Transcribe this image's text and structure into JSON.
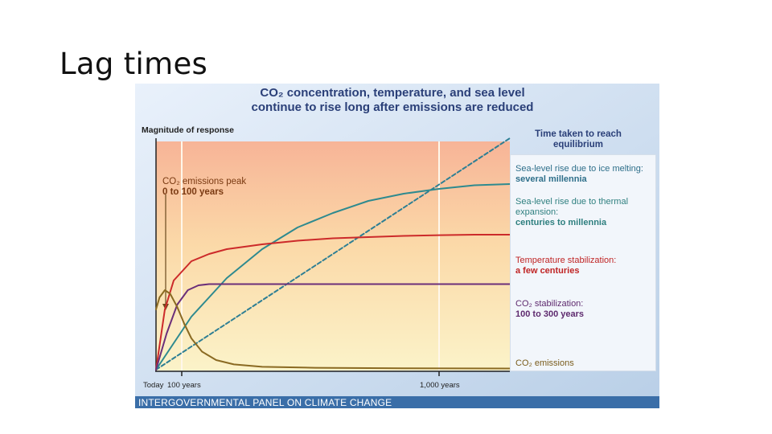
{
  "slide": {
    "title": "Lag times"
  },
  "chart_data": {
    "type": "line",
    "title_line1": "CO₂ concentration, temperature, and sea level",
    "title_line2": "continue to rise long after emissions are reduced",
    "ylabel": "Magnitude of response",
    "legend_title_line1": "Time taken to reach",
    "legend_title_line2": "equilibrium",
    "annotation_line1": "CO₂ emissions peak",
    "annotation_line2": "0 to 100 years",
    "x_ticks": [
      "Today",
      "100 years",
      "1,000 years"
    ],
    "source": "INTERGOVERNMENTAL PANEL ON CLIMATE CHANGE",
    "series": [
      {
        "name": "Sea-level rise due to ice melting:",
        "detail": "several millennia",
        "color": "#2e7f94",
        "dashed": true,
        "x": [
          0,
          1
        ],
        "y": [
          0,
          0.96
        ]
      },
      {
        "name": "Sea-level rise due to thermal expansion:",
        "detail": "centuries to millennia",
        "color": "#2e8a8f",
        "dashed": false,
        "x": [
          0,
          0.1,
          0.2,
          0.3,
          0.4,
          0.5,
          0.6,
          0.7,
          0.8,
          0.9,
          1
        ],
        "y": [
          0,
          0.22,
          0.38,
          0.5,
          0.59,
          0.65,
          0.7,
          0.73,
          0.75,
          0.765,
          0.77
        ]
      },
      {
        "name": "Temperature stabilization:",
        "detail": "a few centuries",
        "color": "#cc2a2a",
        "dashed": false,
        "x": [
          0,
          0.025,
          0.05,
          0.1,
          0.15,
          0.2,
          0.3,
          0.4,
          0.5,
          0.6,
          0.7,
          0.8,
          0.9,
          1
        ],
        "y": [
          0,
          0.25,
          0.37,
          0.45,
          0.48,
          0.5,
          0.52,
          0.535,
          0.545,
          0.55,
          0.555,
          0.558,
          0.56,
          0.56
        ]
      },
      {
        "name": "CO₂ stabilization:",
        "detail": "100 to 300 years",
        "color": "#6b2f7a",
        "dashed": false,
        "x": [
          0,
          0.03,
          0.06,
          0.09,
          0.12,
          0.15,
          0.2,
          0.3,
          0.5,
          0.75,
          1
        ],
        "y": [
          0,
          0.15,
          0.27,
          0.33,
          0.35,
          0.355,
          0.355,
          0.355,
          0.355,
          0.355,
          0.355
        ]
      },
      {
        "name": "CO₂ emissions",
        "detail": "",
        "color": "#8a6a22",
        "dashed": false,
        "x": [
          0,
          0.01,
          0.025,
          0.04,
          0.06,
          0.08,
          0.1,
          0.13,
          0.17,
          0.22,
          0.3,
          0.45,
          0.7,
          1
        ],
        "y": [
          0.25,
          0.3,
          0.33,
          0.315,
          0.26,
          0.19,
          0.13,
          0.075,
          0.04,
          0.022,
          0.012,
          0.008,
          0.006,
          0.005
        ]
      }
    ]
  }
}
